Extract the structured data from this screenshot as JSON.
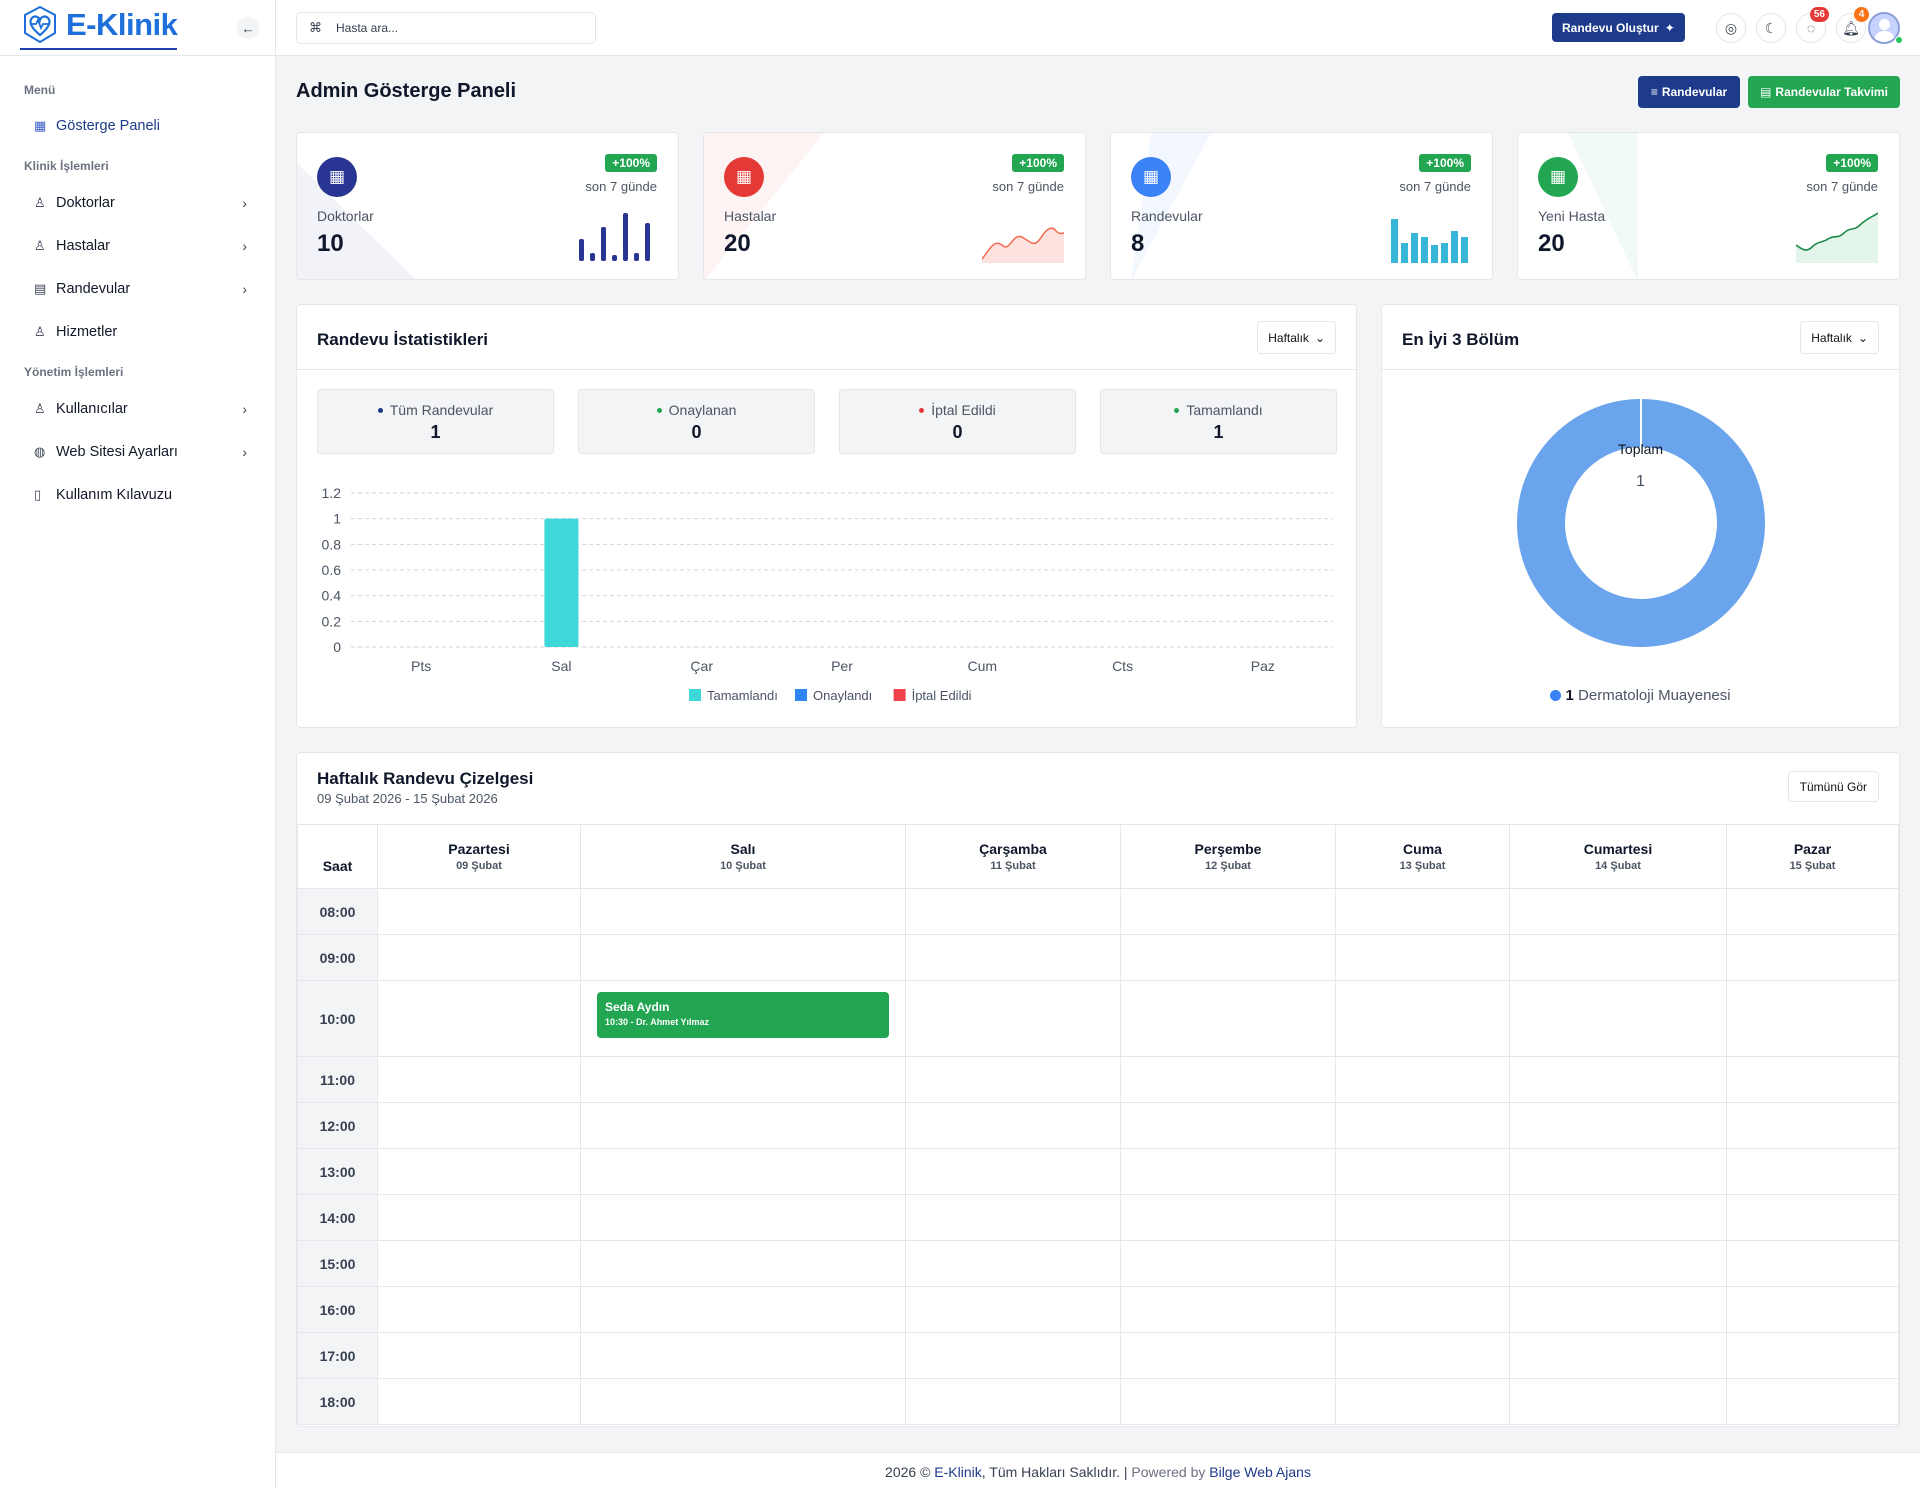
{
  "app": {
    "name": "E-Klinik"
  },
  "sidebar": {
    "groups": {
      "menu": "Menü",
      "clinic": "Klinik İşlemleri",
      "admin": "Yönetim İşlemleri"
    },
    "items": [
      {
        "label": "Gösterge Paneli",
        "icon": "dashboard-icon",
        "active": true
      },
      {
        "label": "Doktorlar",
        "icon": "user-doctor-icon"
      },
      {
        "label": "Hastalar",
        "icon": "patient-icon"
      },
      {
        "label": "Randevular",
        "icon": "calendar-icon"
      },
      {
        "label": "Hizmetler",
        "icon": "services-icon"
      },
      {
        "label": "Kullanıcılar",
        "icon": "user-icon"
      },
      {
        "label": "Web Sitesi Ayarları",
        "icon": "globe-icon"
      },
      {
        "label": "Kullanım Kılavuzu",
        "icon": "book-icon"
      }
    ]
  },
  "topbar": {
    "search_placeholder": "Hasta ara...",
    "create_button": "Randevu Oluştur",
    "messages_count": "56",
    "notifications_count": "4"
  },
  "page": {
    "title": "Admin Gösterge Paneli",
    "btn_appointments": "Randevular",
    "btn_calendar": "Randevular Takvimi"
  },
  "stats": [
    {
      "label": "Doktorlar",
      "value": "10",
      "trend": "+100%",
      "period": "son 7 günde",
      "color": "#283593"
    },
    {
      "label": "Hastalar",
      "value": "20",
      "trend": "+100%",
      "period": "son 7 günde",
      "color": "#e53935"
    },
    {
      "label": "Randevular",
      "value": "8",
      "trend": "+100%",
      "period": "son 7 günde",
      "color": "#3b82f6"
    },
    {
      "label": "Yeni Hasta",
      "value": "20",
      "trend": "+100%",
      "period": "son 7 günde",
      "color": "#22a652"
    }
  ],
  "appointment_stats": {
    "title": "Randevu İstatistikleri",
    "period": "Haftalık",
    "summary": [
      {
        "label": "Tüm Randevular",
        "value": "1",
        "color": "#1e3a8a"
      },
      {
        "label": "Onaylanan",
        "value": "0",
        "color": "#22a652"
      },
      {
        "label": "İptal Edildi",
        "value": "0",
        "color": "#e53935"
      },
      {
        "label": "Tamamlandı",
        "value": "1",
        "color": "#22a652"
      }
    ]
  },
  "top_departments": {
    "title": "En İyi 3 Bölüm",
    "period": "Haftalık",
    "center_label": "Toplam",
    "center_value": "1",
    "legend_count": "1",
    "legend_label": "Dermatoloji Muayenesi",
    "color": "#6aa4ec"
  },
  "chart_data": [
    {
      "type": "bar",
      "categories": [
        "Pts",
        "Sal",
        "Çar",
        "Per",
        "Cum",
        "Cts",
        "Paz"
      ],
      "series": [
        {
          "name": "Tamamlandı",
          "values": [
            0,
            1,
            0,
            0,
            0,
            0,
            0
          ],
          "color": "#3ed8d8"
        },
        {
          "name": "Onaylandı",
          "values": [
            0,
            0,
            0,
            0,
            0,
            0,
            0
          ],
          "color": "#2e86f5"
        },
        {
          "name": "İptal Edildi",
          "values": [
            0,
            0,
            0,
            0,
            0,
            0,
            0
          ],
          "color": "#f0424b"
        }
      ],
      "yticks": [
        "0",
        "0.2",
        "0.4",
        "0.6",
        "0.8",
        "1",
        "1.2"
      ],
      "ylim": [
        0,
        1.2
      ],
      "grid": true,
      "legend": "bottom"
    },
    {
      "type": "pie",
      "categories": [
        "Dermatoloji Muayenesi"
      ],
      "values": [
        1
      ],
      "donut": true
    }
  ],
  "schedule": {
    "title": "Haftalık Randevu Çizelgesi",
    "range": "09 Şubat 2026 - 15 Şubat 2026",
    "view_all": "Tümünü Gör",
    "time_header": "Saat",
    "days": [
      {
        "name": "Pazartesi",
        "date": "09 Şubat"
      },
      {
        "name": "Salı",
        "date": "10 Şubat"
      },
      {
        "name": "Çarşamba",
        "date": "11 Şubat"
      },
      {
        "name": "Perşembe",
        "date": "12 Şubat"
      },
      {
        "name": "Cuma",
        "date": "13 Şubat"
      },
      {
        "name": "Cumartesi",
        "date": "14 Şubat"
      },
      {
        "name": "Pazar",
        "date": "15 Şubat"
      }
    ],
    "hours": [
      "08:00",
      "09:00",
      "10:00",
      "11:00",
      "12:00",
      "13:00",
      "14:00",
      "15:00",
      "16:00",
      "17:00",
      "18:00"
    ],
    "event": {
      "name": "Seda Aydın",
      "detail": "10:30 - Dr. Ahmet Yılmaz",
      "day": "Salı",
      "hour": "10:00"
    }
  },
  "footer": {
    "year": "2026 ©",
    "brand": "E-Klinik",
    "rights": ", Tüm Hakları Saklıdır.",
    "sep": " | ",
    "powered": "Powered by",
    "agency": "Bilge Web Ajans"
  }
}
